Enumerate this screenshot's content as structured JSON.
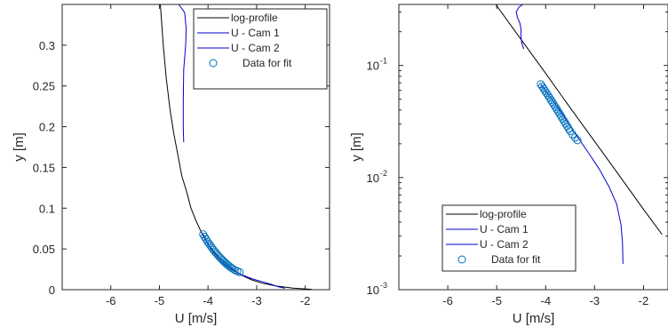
{
  "chart_data": [
    {
      "type": "line",
      "xlabel": "U [m/s]",
      "ylabel": "y [m]",
      "xscale": "linear",
      "yscale": "linear",
      "xlim": [
        -7,
        -1.5
      ],
      "ylim": [
        0,
        0.35
      ],
      "xticks": [
        -6,
        -5,
        -4,
        -3,
        -2
      ],
      "xticklabels": [
        "-6",
        "-5",
        "-4",
        "-3",
        "-2"
      ],
      "yticks": [
        0,
        0.05,
        0.1,
        0.15,
        0.2,
        0.25,
        0.3
      ],
      "yticklabels": [
        "0",
        "0.05",
        "0.1",
        "0.15",
        "0.2",
        "0.25",
        "0.3"
      ],
      "legend_position": "top-right",
      "series": [
        {
          "name": "log-profile",
          "color": "#000000",
          "style": "line",
          "x": [
            -4.98,
            -4.92,
            -4.86,
            -4.78,
            -4.7,
            -4.62,
            -4.54,
            -4.44,
            -4.35,
            -4.25,
            -4.15,
            -4.05,
            -3.95,
            -3.82,
            -3.69,
            -3.55,
            -3.42,
            -3.28,
            -3.1,
            -2.88,
            -2.6,
            -2.25,
            -1.87
          ],
          "y": [
            0.35,
            0.3,
            0.26,
            0.22,
            0.19,
            0.165,
            0.14,
            0.12,
            0.1,
            0.085,
            0.072,
            0.061,
            0.052,
            0.043,
            0.035,
            0.028,
            0.022,
            0.017,
            0.012,
            0.008,
            0.0045,
            0.0018,
            0.0004
          ]
        },
        {
          "name": "U - Cam 1",
          "color": "#0000cc",
          "style": "line",
          "x": [
            -4.1,
            -4.02,
            -3.92,
            -3.82,
            -3.72,
            -3.62,
            -3.52,
            -3.42,
            -3.32,
            -3.1,
            -2.9,
            -2.7,
            -2.55,
            -2.42
          ],
          "y": [
            0.068,
            0.058,
            0.048,
            0.041,
            0.034,
            0.029,
            0.025,
            0.0215,
            0.0185,
            0.0135,
            0.01,
            0.0065,
            0.0035,
            0.0017
          ]
        },
        {
          "name": "U - Cam 2",
          "color": "#0000cc",
          "style": "line",
          "x": [
            -4.6,
            -4.48,
            -4.45,
            -4.46,
            -4.5,
            -4.51,
            -4.51,
            -4.5
          ],
          "y": [
            0.35,
            0.34,
            0.32,
            0.3,
            0.27,
            0.23,
            0.2,
            0.181
          ]
        },
        {
          "name": "Data for fit",
          "color": "#0072bd",
          "style": "markers",
          "marker": "open-circle",
          "x": [
            -4.1,
            -4.07,
            -4.04,
            -4.01,
            -3.98,
            -3.95,
            -3.92,
            -3.89,
            -3.86,
            -3.83,
            -3.8,
            -3.77,
            -3.74,
            -3.71,
            -3.68,
            -3.65,
            -3.62,
            -3.59,
            -3.56,
            -3.53,
            -3.5,
            -3.45,
            -3.4,
            -3.35
          ],
          "y": [
            0.068,
            0.065,
            0.062,
            0.059,
            0.0565,
            0.054,
            0.0515,
            0.049,
            0.0468,
            0.0446,
            0.0425,
            0.0405,
            0.0386,
            0.0368,
            0.035,
            0.0333,
            0.0317,
            0.0302,
            0.0287,
            0.0273,
            0.026,
            0.0242,
            0.0227,
            0.0215
          ]
        }
      ]
    },
    {
      "type": "line",
      "xlabel": "U [m/s]",
      "ylabel": "y [m]",
      "xscale": "linear",
      "yscale": "log",
      "xlim": [
        -7,
        -1.5
      ],
      "ylim": [
        0.001,
        0.35
      ],
      "xticks": [
        -6,
        -5,
        -4,
        -3,
        -2
      ],
      "xticklabels": [
        "-6",
        "-5",
        "-4",
        "-3",
        "-2"
      ],
      "yticks": [
        0.001,
        0.01,
        0.1
      ],
      "yticklabels": [
        "10",
        "10",
        "10"
      ],
      "ytickexponents": [
        "-3",
        "-2",
        "-1"
      ],
      "legend_position": "bottom-left",
      "series": [
        {
          "name": "log-profile",
          "color": "#000000",
          "style": "line",
          "x": [
            -5.02,
            -4.5,
            -4.0,
            -3.5,
            -3.0,
            -2.5,
            -2.0,
            -1.62
          ],
          "y": [
            0.35,
            0.17,
            0.085,
            0.042,
            0.021,
            0.0105,
            0.0052,
            0.0031
          ]
        },
        {
          "name": "U - Cam 1",
          "color": "#0000cc",
          "style": "line",
          "x": [
            -4.1,
            -3.9,
            -3.7,
            -3.5,
            -3.3,
            -3.1,
            -2.9,
            -2.7,
            -2.55,
            -2.46,
            -2.43,
            -2.42
          ],
          "y": [
            0.068,
            0.052,
            0.039,
            0.029,
            0.0215,
            0.016,
            0.0118,
            0.0082,
            0.0058,
            0.0038,
            0.0026,
            0.0017
          ]
        },
        {
          "name": "U - Cam 2",
          "color": "#0000cc",
          "style": "line",
          "x": [
            -4.47,
            -4.55,
            -4.6,
            -4.58,
            -4.53,
            -4.5,
            -4.51,
            -4.49,
            -4.45
          ],
          "y": [
            0.35,
            0.33,
            0.3,
            0.27,
            0.24,
            0.21,
            0.19,
            0.16,
            0.14
          ]
        },
        {
          "name": "Data for fit",
          "color": "#0072bd",
          "style": "markers",
          "marker": "open-circle",
          "x": [
            -4.1,
            -4.07,
            -4.04,
            -4.01,
            -3.98,
            -3.95,
            -3.92,
            -3.89,
            -3.86,
            -3.83,
            -3.8,
            -3.77,
            -3.74,
            -3.71,
            -3.68,
            -3.65,
            -3.62,
            -3.59,
            -3.56,
            -3.53,
            -3.5,
            -3.45,
            -3.4,
            -3.35
          ],
          "y": [
            0.068,
            0.065,
            0.062,
            0.059,
            0.0565,
            0.054,
            0.0515,
            0.049,
            0.0468,
            0.0446,
            0.0425,
            0.0405,
            0.0386,
            0.0368,
            0.035,
            0.0333,
            0.0317,
            0.0302,
            0.0287,
            0.0273,
            0.026,
            0.0242,
            0.0227,
            0.0215
          ]
        }
      ]
    }
  ]
}
